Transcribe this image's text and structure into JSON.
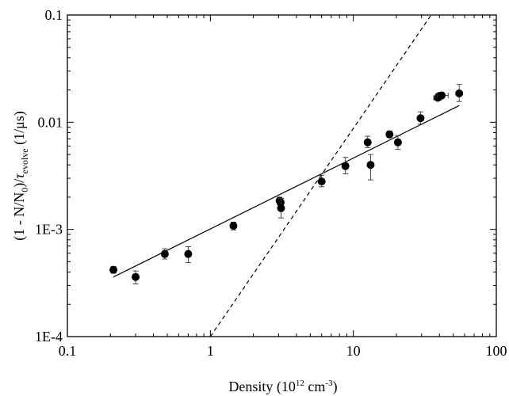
{
  "chart_data": {
    "type": "scatter",
    "xscale": "log",
    "yscale": "log",
    "xlim": [
      0.1,
      100
    ],
    "ylim": [
      0.0001,
      0.1
    ],
    "grid": false,
    "xlabel": "Density (10^12 cm^-3)",
    "ylabel": "(1 - N/N0)/τ_evolve (1/μs)",
    "xlabel_parts": {
      "main": "Density (10",
      "sup1": "12",
      "mid": " cm",
      "sup2": "-3",
      "end": ")"
    },
    "ylabel_parts": {
      "a": "(1 - N/N",
      "sub0": "0",
      "b": ")/",
      "tau": "τ",
      "subev": "evolve",
      "c": " (1/μs)"
    },
    "x_ticks": [
      {
        "value": 0.1,
        "label": "0.1"
      },
      {
        "value": 1,
        "label": "1"
      },
      {
        "value": 10,
        "label": "10"
      },
      {
        "value": 100,
        "label": "100"
      }
    ],
    "y_ticks": [
      {
        "value": 0.0001,
        "label": "1E-4"
      },
      {
        "value": 0.001,
        "label": "1E-3"
      },
      {
        "value": 0.01,
        "label": "0.01"
      },
      {
        "value": 0.1,
        "label": "0.1"
      }
    ],
    "series": [
      {
        "kind": "points",
        "points": [
          {
            "x": 0.21,
            "y": 0.00042,
            "ylo": 0.00039,
            "yhi": 0.00045
          },
          {
            "x": 0.3,
            "y": 0.00036,
            "ylo": 0.00031,
            "yhi": 0.00041
          },
          {
            "x": 0.48,
            "y": 0.00059,
            "ylo": 0.00053,
            "yhi": 0.00066
          },
          {
            "x": 0.7,
            "y": 0.00059,
            "ylo": 0.00049,
            "yhi": 0.00069
          },
          {
            "x": 1.45,
            "y": 0.00108,
            "ylo": 0.00099,
            "yhi": 0.00117
          },
          {
            "x": 3.05,
            "y": 0.00185,
            "ylo": 0.0017,
            "yhi": 0.002
          },
          {
            "x": 3.1,
            "y": 0.00178,
            "ylo": 0.00163,
            "yhi": 0.00195
          },
          {
            "x": 3.12,
            "y": 0.00158,
            "ylo": 0.00128,
            "yhi": 0.00195
          },
          {
            "x": 6.0,
            "y": 0.0028,
            "ylo": 0.0025,
            "yhi": 0.0032
          },
          {
            "x": 8.8,
            "y": 0.0039,
            "ylo": 0.0033,
            "yhi": 0.0047
          },
          {
            "x": 12.6,
            "y": 0.0065,
            "ylo": 0.0058,
            "yhi": 0.0074
          },
          {
            "x": 13.2,
            "y": 0.004,
            "ylo": 0.0029,
            "yhi": 0.005
          },
          {
            "x": 17.9,
            "y": 0.0077,
            "ylo": 0.0072,
            "yhi": 0.0083
          },
          {
            "x": 20.5,
            "y": 0.0065,
            "ylo": 0.0056,
            "yhi": 0.0075
          },
          {
            "x": 29.5,
            "y": 0.0109,
            "ylo": 0.0096,
            "yhi": 0.0125
          },
          {
            "x": 39.0,
            "y": 0.0169,
            "ylo": 0.0161,
            "yhi": 0.0178,
            "xlo": 36.5,
            "xhi": 41.5
          },
          {
            "x": 40.0,
            "y": 0.0176,
            "ylo": 0.0168,
            "yhi": 0.0185,
            "xlo": 37.5,
            "xhi": 43.0
          },
          {
            "x": 41.5,
            "y": 0.0178,
            "ylo": 0.0171,
            "yhi": 0.0186,
            "xlo": 38.5,
            "xhi": 46.0
          },
          {
            "x": 55.0,
            "y": 0.0186,
            "ylo": 0.0156,
            "yhi": 0.0225
          }
        ]
      },
      {
        "kind": "line",
        "style": "solid",
        "points": [
          [
            0.21,
            0.00036
          ],
          [
            55.0,
            0.0143
          ]
        ]
      },
      {
        "kind": "line",
        "style": "dashed",
        "points": [
          [
            1.0,
            0.0001
          ],
          [
            35.0,
            0.1
          ]
        ]
      }
    ]
  }
}
